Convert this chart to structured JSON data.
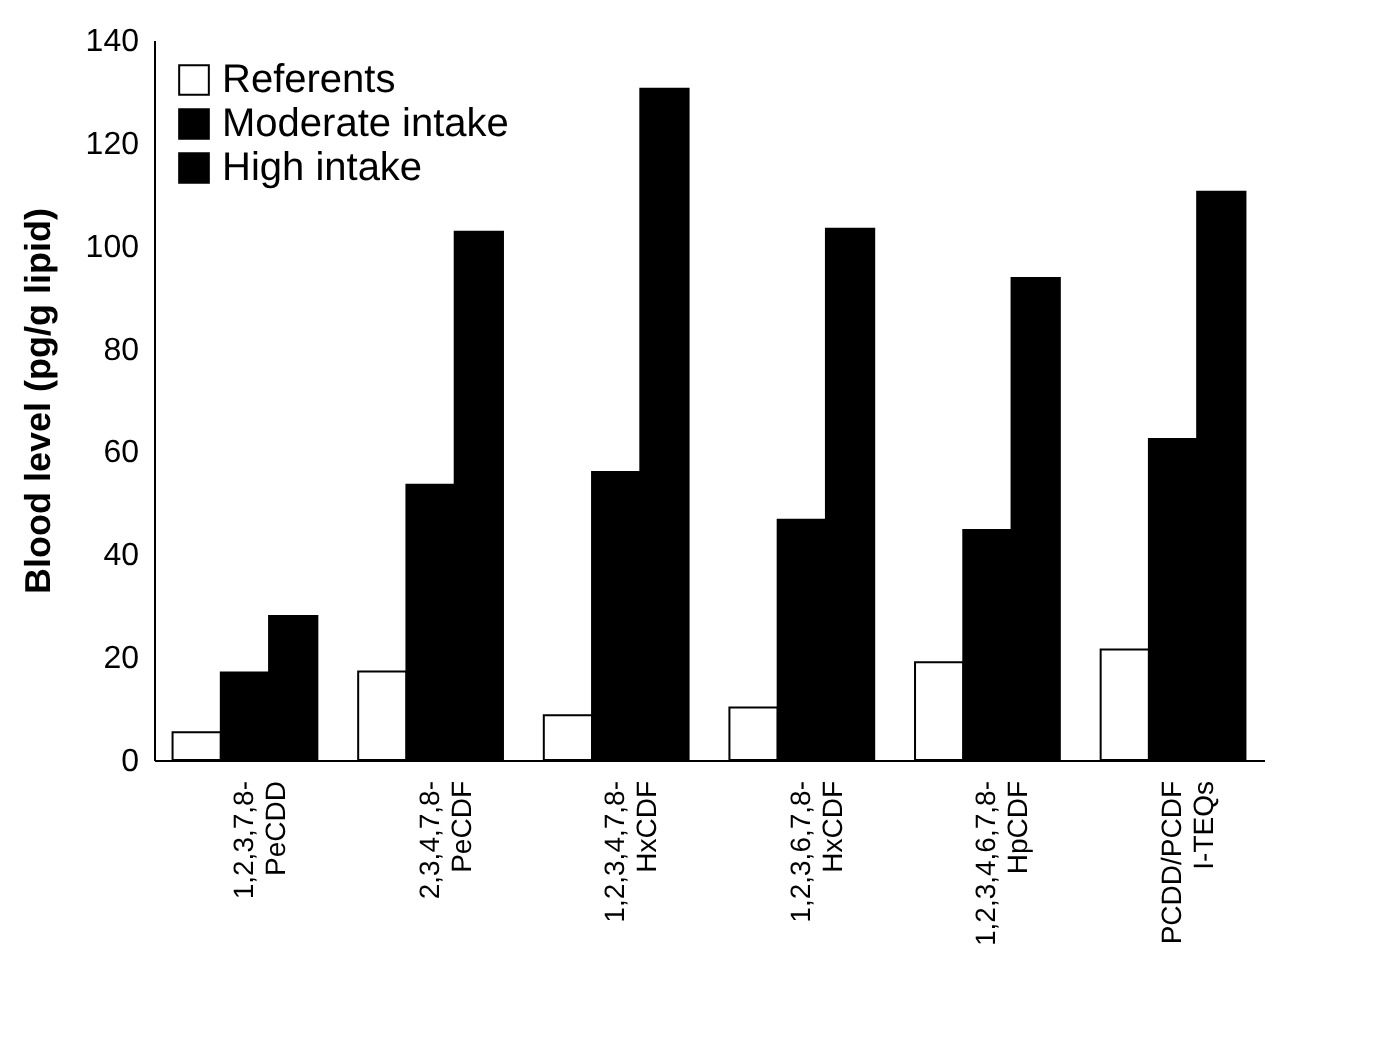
{
  "chart_data": {
    "type": "bar",
    "ylabel": "Blood level (pg/g lipid)",
    "categories": [
      "1,2,3,7,8-\nPeCDD",
      "2,3,4,7,8-\nPeCDF",
      "1,2,3,4,7,8-\nHxCDF",
      "1,2,3,6,7,8-\nHxCDF",
      "1,2,3,4,6,7,8-\nHpCDF",
      "PCDD/PCDF\nI-TEQs"
    ],
    "series": [
      {
        "name": "Referents",
        "color": "#ffffff",
        "values": [
          5.4,
          17.2,
          8.7,
          10.2,
          19,
          21.5
        ]
      },
      {
        "name": "Moderate intake",
        "color": "#000000",
        "values": [
          17,
          53.5,
          56,
          46.7,
          44.7,
          62.4
        ]
      },
      {
        "name": "High intake",
        "color": "#000000",
        "values": [
          28,
          102.7,
          130.5,
          103.3,
          93.7,
          110.5
        ]
      }
    ],
    "ylim": [
      0,
      140
    ],
    "yticks": [
      0,
      20,
      40,
      60,
      80,
      100,
      120,
      140
    ],
    "grid": false,
    "legend": "top left"
  }
}
